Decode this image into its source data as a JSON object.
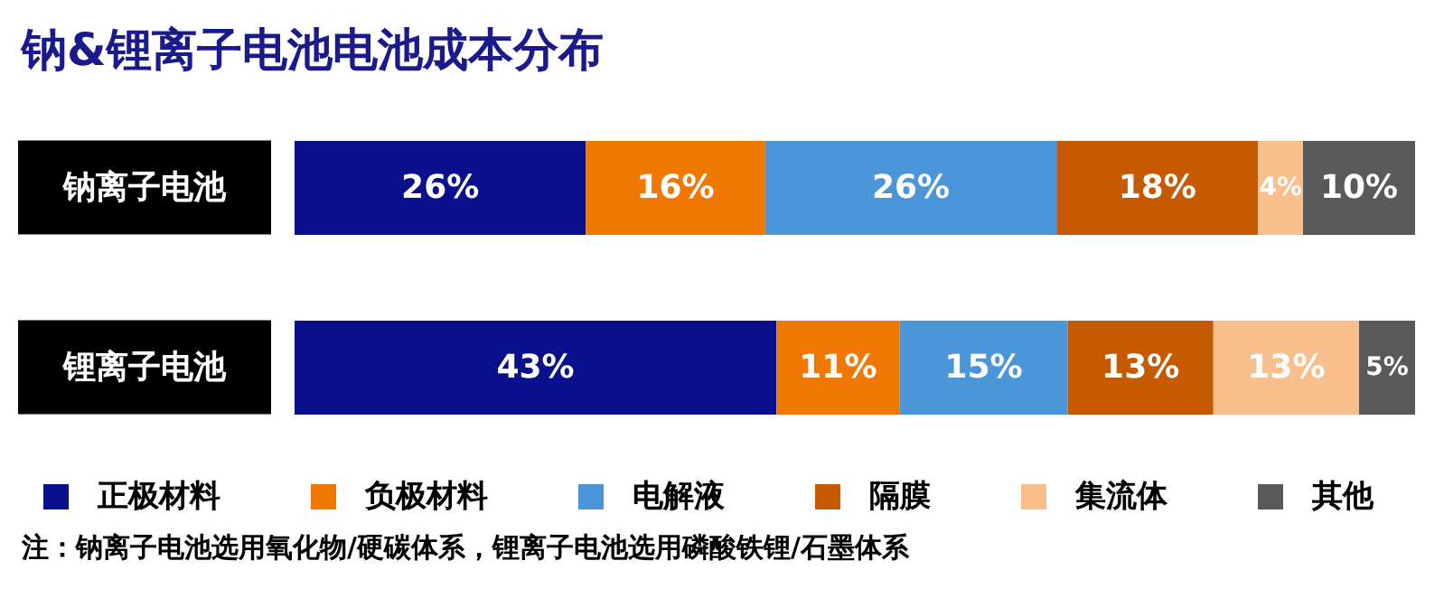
{
  "chart_data": {
    "type": "bar",
    "orientation": "horizontal",
    "stacked": true,
    "title": "钠&锂离子电池电池成本分布",
    "categories": [
      "钠离子电池",
      "锂离子电池"
    ],
    "xlim": [
      0,
      100
    ],
    "tick_labels": "y",
    "legend": "bottom",
    "grid": false,
    "series": [
      {
        "name": "正极材料",
        "color": "#0a0f8c",
        "values": [
          26,
          43
        ],
        "value_labels": [
          "26%",
          "43%"
        ]
      },
      {
        "name": "负极材料",
        "color": "#f07800",
        "values": [
          16,
          11
        ],
        "value_labels": [
          "16%",
          "11%"
        ]
      },
      {
        "name": "电解液",
        "color": "#4a96d8",
        "values": [
          26,
          15
        ],
        "value_labels": [
          "26%",
          "15%"
        ]
      },
      {
        "name": "隔膜",
        "color": "#c55a00",
        "values": [
          18,
          13
        ],
        "value_labels": [
          "18%",
          "13%"
        ]
      },
      {
        "name": "集流体",
        "color": "#f8be8c",
        "values": [
          4,
          13
        ],
        "value_labels": [
          "4%",
          "13%"
        ]
      },
      {
        "name": "其他",
        "color": "#595959",
        "values": [
          10,
          5
        ],
        "value_labels": [
          "10%",
          "5%"
        ]
      }
    ],
    "annotations": [
      "注：钠离子电池选用氧化物/硬碳体系，锂离子电池选用磷酸铁锂/石墨体系"
    ]
  }
}
